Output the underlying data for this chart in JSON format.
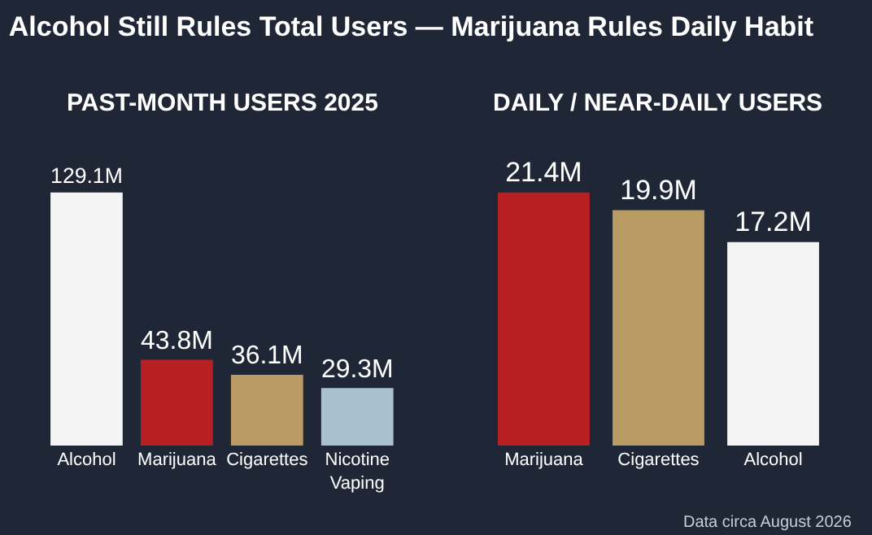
{
  "chart_data": [
    {
      "type": "bar",
      "title": "Alcohol Still Rules Total Users — Marijuana Rules Daily Habit",
      "subtitle": "PAST-MONTH USERS 2025",
      "categories": [
        "Alcohol",
        "Marijuana",
        "Cigarettes",
        "Nicotine Vaping"
      ],
      "values": [
        129.1,
        43.8,
        36.1,
        29.3
      ],
      "colors": [
        "#f4f4f4",
        "#b81f22",
        "#b99b63",
        "#a9c0cf"
      ],
      "value_labels": [
        "129.1M",
        "43.8M",
        "36.1M",
        "29.3M"
      ]
    },
    {
      "type": "bar",
      "subtitle": "DAILY / NEAR-DAILY USERS",
      "categories": [
        "Marijuana",
        "Cigarettes",
        "Alcohol"
      ],
      "values": [
        21.4,
        19.9,
        17.2
      ],
      "colors": [
        "#b81f22",
        "#b99b63",
        "#f4f4f4"
      ],
      "value_labels": [
        "21.4M",
        "19.9M",
        "17.2M"
      ],
      "annotations": [
        "Data circa August 2026"
      ]
    }
  ]
}
